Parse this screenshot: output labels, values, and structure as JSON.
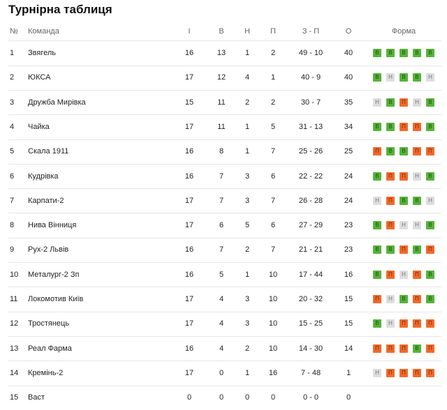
{
  "title": "Турнірна таблиця",
  "table": {
    "header": [
      "№",
      "Команда",
      "І",
      "В",
      "Н",
      "П",
      "З - П",
      "О",
      "Форма"
    ],
    "rows": [
      [
        1,
        "Звягель",
        16,
        13,
        1,
        2,
        "49 - 10",
        40,
        [
          "В",
          "В",
          "В",
          "В",
          "В"
        ]
      ],
      [
        2,
        "ЮКСА",
        17,
        12,
        4,
        1,
        "40 - 9",
        40,
        [
          "В",
          "Н",
          "В",
          "В",
          "Н"
        ]
      ],
      [
        3,
        "Дружба Мирівка",
        15,
        11,
        2,
        2,
        "30 - 7",
        35,
        [
          "Н",
          "В",
          "П",
          "Н",
          "В"
        ]
      ],
      [
        4,
        "Чайка",
        17,
        11,
        1,
        5,
        "31 - 13",
        34,
        [
          "В",
          "В",
          "П",
          "П",
          "В"
        ]
      ],
      [
        5,
        "Скала 1911",
        16,
        8,
        1,
        7,
        "25 - 26",
        25,
        [
          "П",
          "В",
          "В",
          "П",
          "П"
        ]
      ],
      [
        6,
        "Кудрівка",
        16,
        7,
        3,
        6,
        "22 - 22",
        24,
        [
          "В",
          "П",
          "П",
          "Н",
          "В"
        ]
      ],
      [
        7,
        "Карпати-2",
        17,
        7,
        3,
        7,
        "26 - 28",
        24,
        [
          "Н",
          "П",
          "В",
          "В",
          "Н"
        ]
      ],
      [
        8,
        "Нива Вінниця",
        17,
        6,
        5,
        6,
        "27 - 29",
        23,
        [
          "В",
          "П",
          "Н",
          "Н",
          "В"
        ]
      ],
      [
        9,
        "Рух-2 Львів",
        16,
        7,
        2,
        7,
        "21 - 21",
        23,
        [
          "В",
          "В",
          "П",
          "В",
          "П"
        ]
      ],
      [
        10,
        "Металург-2 Зп",
        16,
        5,
        1,
        10,
        "17 - 44",
        16,
        [
          "В",
          "П",
          "Н",
          "П",
          "В"
        ]
      ],
      [
        11,
        "Локомотив Київ",
        17,
        4,
        3,
        10,
        "20 - 32",
        15,
        [
          "П",
          "Н",
          "В",
          "П",
          "В"
        ]
      ],
      [
        12,
        "Тростянець",
        17,
        4,
        3,
        10,
        "15 - 25",
        15,
        [
          "В",
          "Н",
          "П",
          "П",
          "П"
        ]
      ],
      [
        13,
        "Реал Фарма",
        16,
        4,
        2,
        10,
        "14 - 30",
        14,
        [
          "П",
          "П",
          "П",
          "В",
          "П"
        ]
      ],
      [
        14,
        "Кремінь-2",
        17,
        0,
        1,
        16,
        "7 - 48",
        1,
        [
          "Н",
          "П",
          "П",
          "П",
          "П"
        ]
      ],
      [
        15,
        "Васт",
        0,
        0,
        0,
        0,
        "0 - 0",
        0,
        []
      ]
    ]
  }
}
